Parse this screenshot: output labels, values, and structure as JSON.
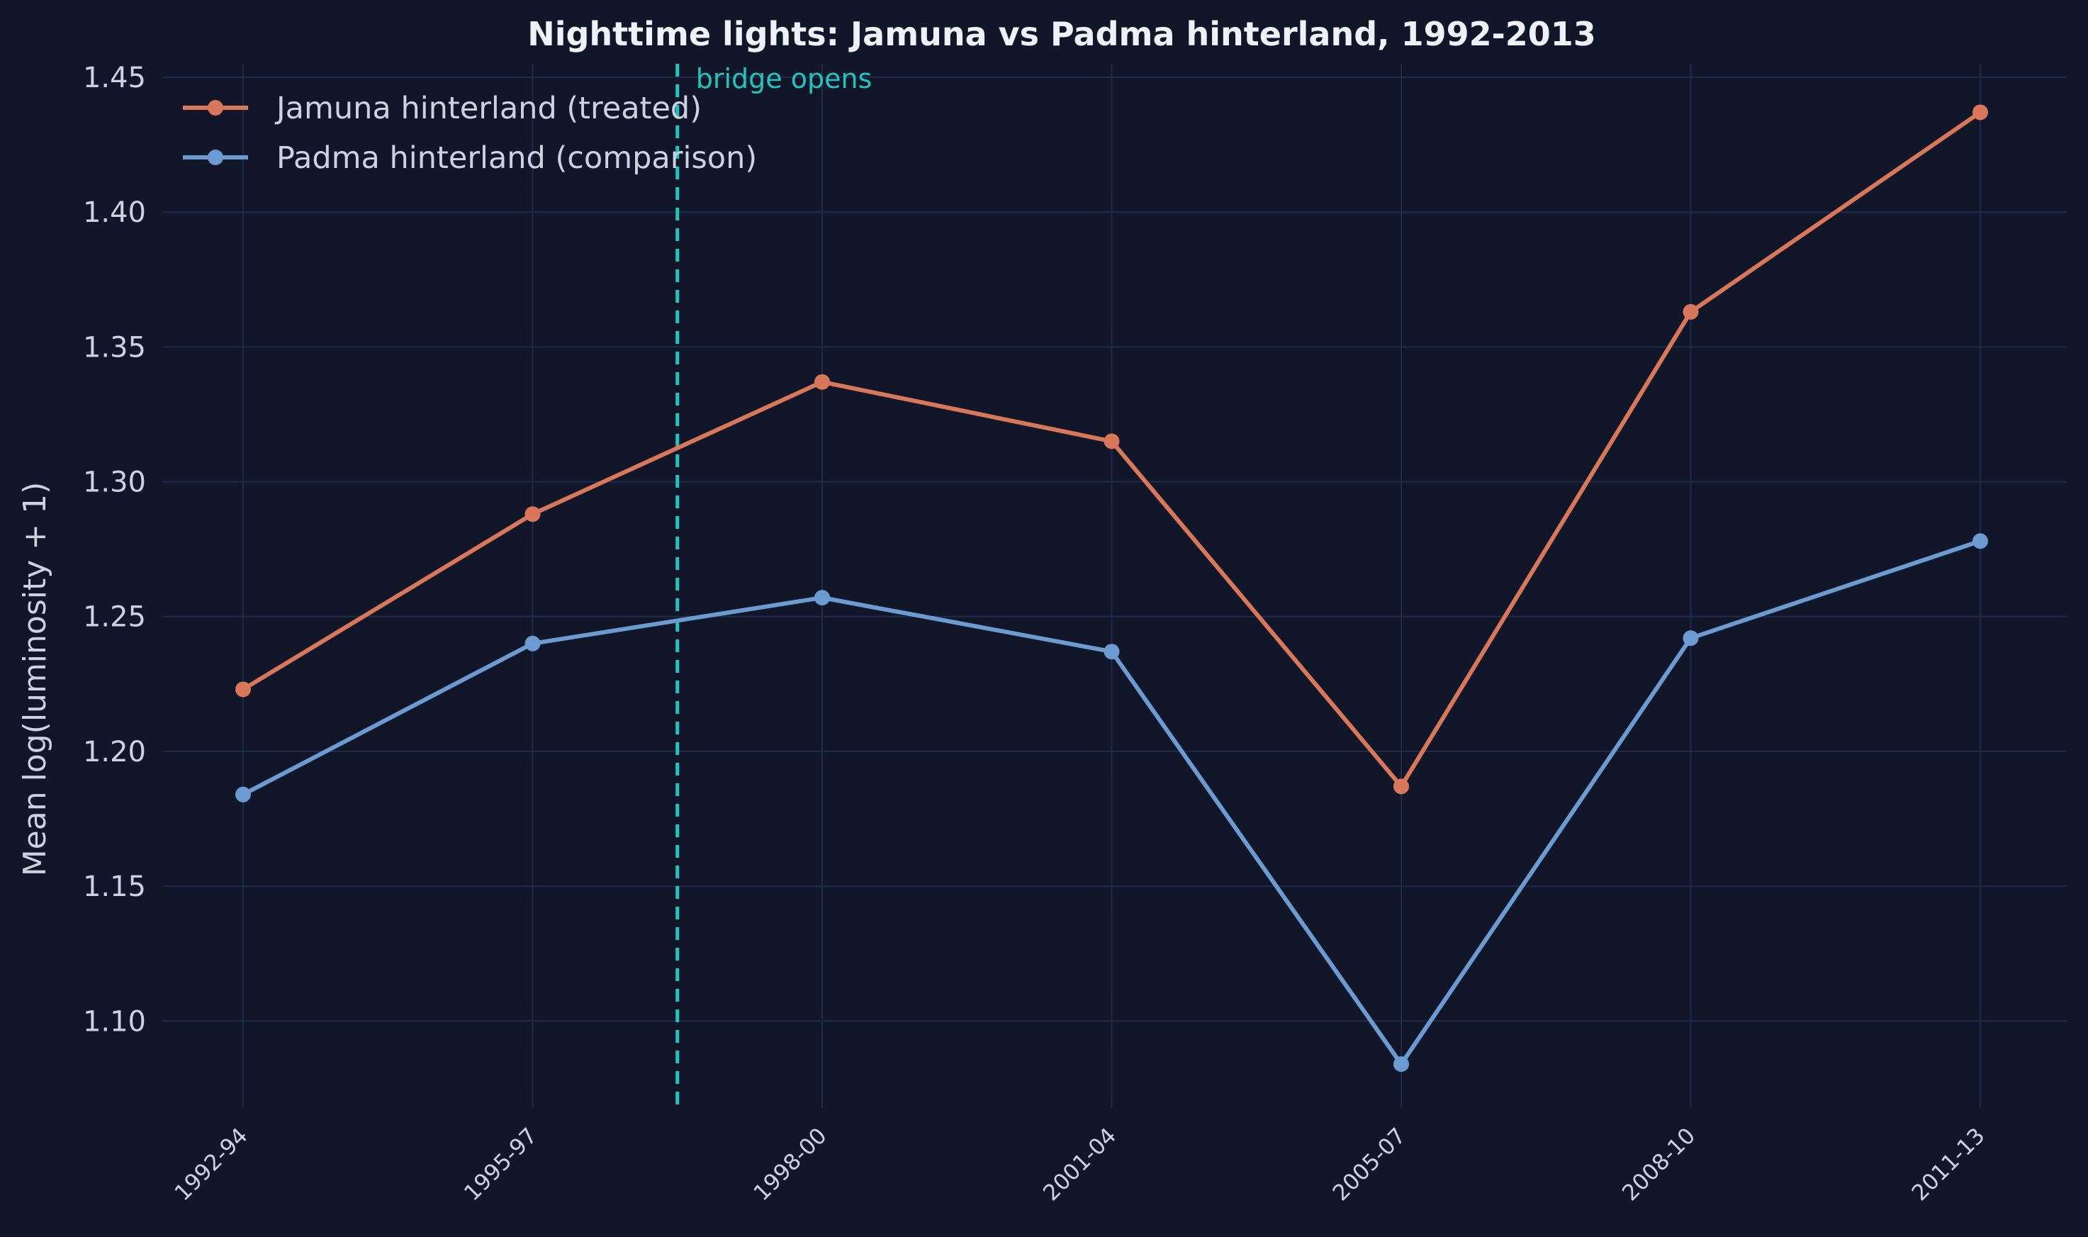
{
  "chart_data": {
    "type": "line",
    "title": "Nighttime lights: Jamuna vs Padma hinterland, 1992-2013",
    "xlabel": "",
    "ylabel": "Mean log(luminosity + 1)",
    "categories": [
      "1992-94",
      "1995-97",
      "1998-00",
      "2001-04",
      "2005-07",
      "2008-10",
      "2011-13"
    ],
    "series": [
      {
        "name": "Jamuna hinterland (treated)",
        "color": "#d9775a",
        "values": [
          1.223,
          1.288,
          1.337,
          1.315,
          1.187,
          1.363,
          1.437
        ]
      },
      {
        "name": "Padma hinterland (comparison)",
        "color": "#6b9bd1",
        "values": [
          1.184,
          1.24,
          1.257,
          1.237,
          1.084,
          1.242,
          1.278
        ]
      }
    ],
    "ylim": [
      1.068,
      1.455
    ],
    "yticks": [
      1.1,
      1.15,
      1.2,
      1.25,
      1.3,
      1.35,
      1.4,
      1.45
    ],
    "grid": true,
    "legend_position": "top-left",
    "annotation": {
      "text": "bridge opens",
      "x_between": [
        "1995-97",
        "1998-00"
      ],
      "x_fraction": 0.5,
      "color": "#22c3bf",
      "style": "dashed vertical line"
    },
    "colors": {
      "background": "#111729",
      "grid": "#1f2b4d",
      "text": "#cbd2e0"
    }
  }
}
